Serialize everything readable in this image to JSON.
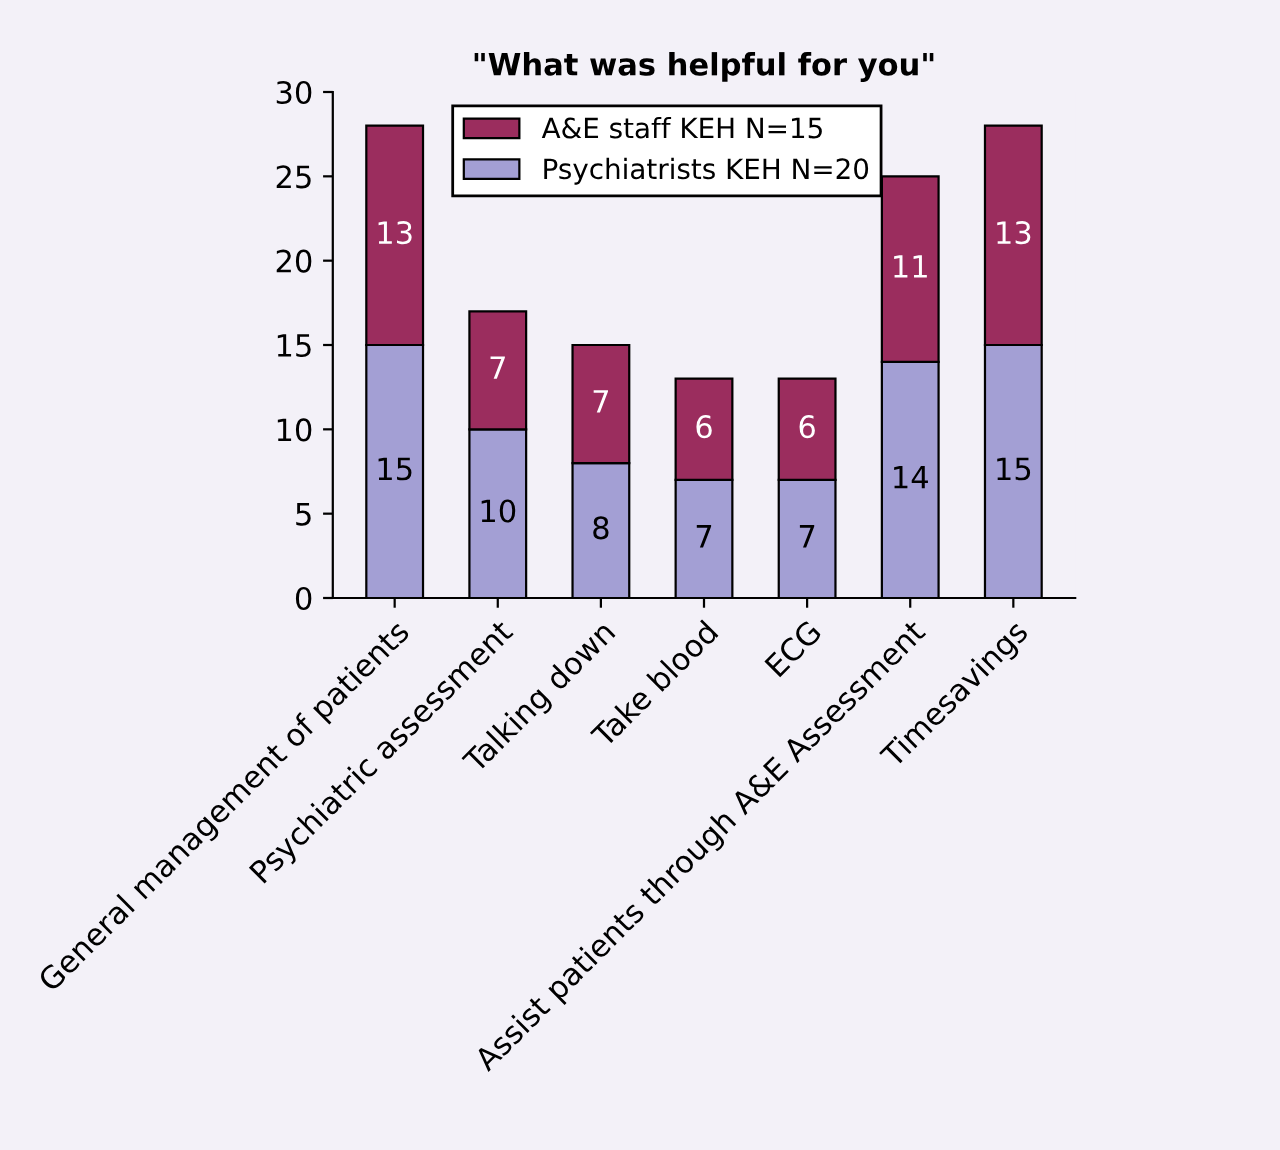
{
  "chart_data": {
    "type": "bar",
    "title": "\"What was helpful for you\"",
    "categories": [
      "General management of patients",
      "Psychiatric assessment",
      "Talking down",
      "Take blood",
      "ECG",
      "Assist patients through A&E Assessment",
      "Timesavings"
    ],
    "stacked": true,
    "series": [
      {
        "name": "Psychiatrists KEH N=20",
        "color": "#a39fd4",
        "values": [
          15,
          10,
          8,
          7,
          7,
          14,
          15
        ]
      },
      {
        "name": "A&E staff KEH N=15",
        "color": "#9b2d5e",
        "values": [
          13,
          7,
          7,
          6,
          6,
          11,
          13
        ]
      }
    ],
    "ylim": [
      0,
      30
    ],
    "yticks": [
      0,
      5,
      10,
      15,
      20,
      25,
      30
    ],
    "data_labels": true,
    "legend": "top",
    "grid": false
  }
}
